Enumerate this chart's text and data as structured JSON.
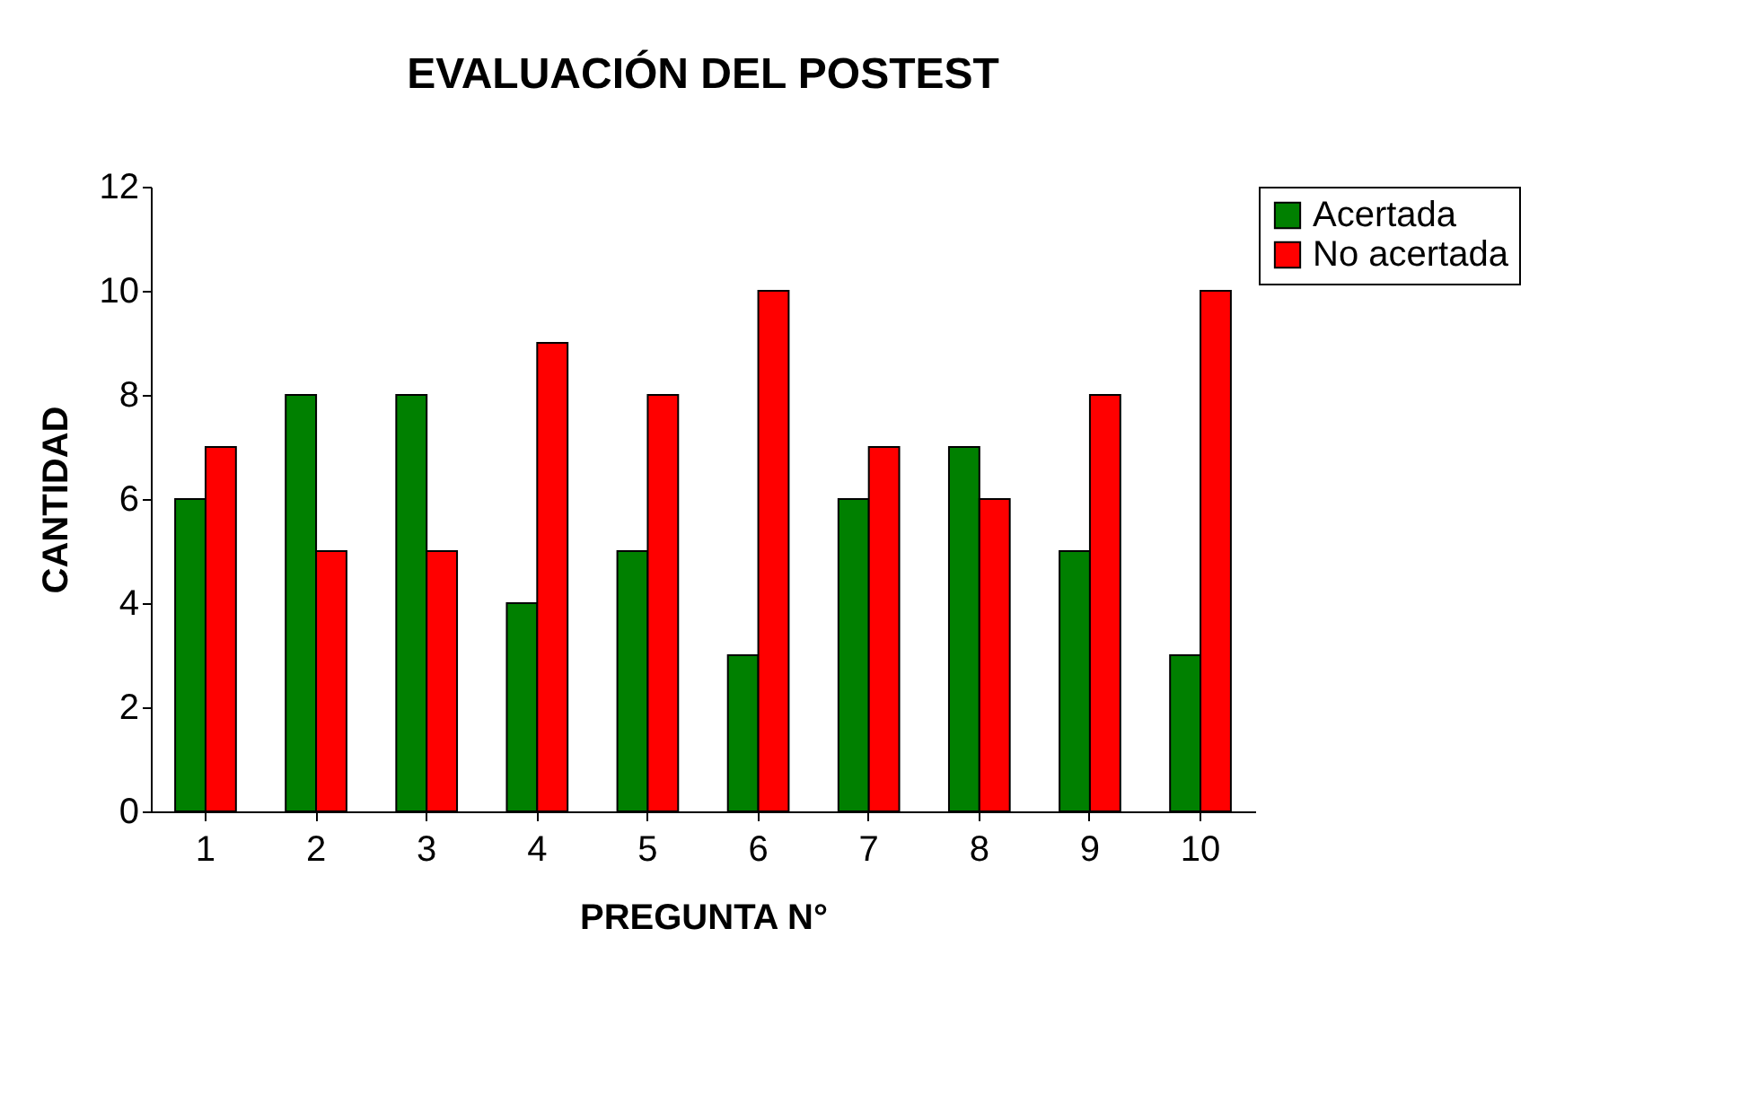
{
  "chart_data": {
    "type": "bar",
    "title": "EVALUACIÓN DEL POSTEST",
    "xlabel": "PREGUNTA N°",
    "ylabel": "CANTIDAD",
    "categories": [
      "1",
      "2",
      "3",
      "4",
      "5",
      "6",
      "7",
      "8",
      "9",
      "10"
    ],
    "series": [
      {
        "name": "Acertada",
        "color": "#008000",
        "values": [
          6,
          8,
          8,
          4,
          5,
          3,
          6,
          7,
          5,
          3
        ]
      },
      {
        "name": "No acertada",
        "color": "#ff0000",
        "values": [
          7,
          5,
          5,
          9,
          8,
          10,
          7,
          6,
          8,
          10
        ]
      }
    ],
    "ylim": [
      0,
      12
    ],
    "yticks": [
      0,
      2,
      4,
      6,
      8,
      10,
      12
    ],
    "grid": false,
    "legend": "right"
  }
}
